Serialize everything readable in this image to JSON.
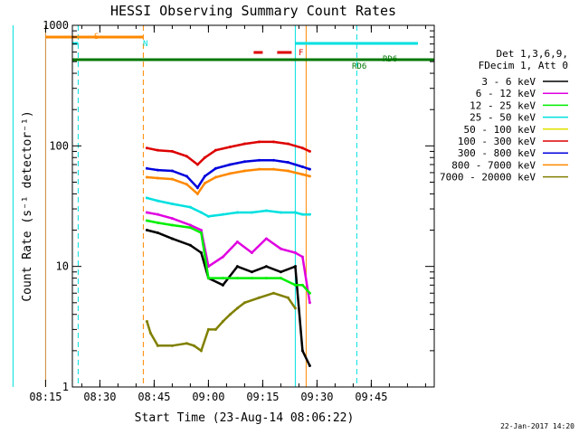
{
  "chart_data": {
    "type": "line",
    "title": "HESSI Observing Summary Count Rates",
    "xlabel": "Start Time (23-Aug-14 08:06:22)",
    "ylabel": "Count Rate (s⁻¹ detector⁻¹)",
    "yscale": "log",
    "ylim": [
      1,
      1000
    ],
    "xlim_minutes": [
      0,
      1200
    ],
    "x_ticks": [
      "08:15",
      "08:30",
      "08:45",
      "09:00",
      "09:15",
      "09:30",
      "09:45"
    ],
    "y_ticks": [
      "1",
      "10",
      "100",
      "1000"
    ],
    "legend_header": [
      "Det 1,3,6,9,",
      "FDecim 1, Att 0"
    ],
    "legend_placement": "right",
    "series": [
      {
        "name": "3 - 6 keV",
        "color": "#000000",
        "x": [
          "08:43",
          "08:46",
          "08:50",
          "08:55",
          "08:58",
          "09:00",
          "09:04",
          "09:08",
          "09:12",
          "09:16",
          "09:20",
          "09:24",
          "09:26",
          "09:28"
        ],
        "y": [
          20,
          19,
          17,
          15,
          13,
          8,
          7,
          10,
          9,
          10,
          9,
          10,
          2,
          1.5
        ]
      },
      {
        "name": "6 - 12 keV",
        "color": "#e000e0",
        "x": [
          "08:43",
          "08:46",
          "08:50",
          "08:55",
          "08:58",
          "09:00",
          "09:04",
          "09:08",
          "09:12",
          "09:16",
          "09:20",
          "09:24",
          "09:26",
          "09:28"
        ],
        "y": [
          28,
          27,
          25,
          22,
          20,
          10,
          12,
          16,
          13,
          17,
          14,
          13,
          12,
          5
        ]
      },
      {
        "name": "12 - 25 keV",
        "color": "#00ee00",
        "x": [
          "08:43",
          "08:46",
          "08:50",
          "08:55",
          "08:58",
          "09:00",
          "09:04",
          "09:08",
          "09:12",
          "09:16",
          "09:20",
          "09:24",
          "09:26",
          "09:28"
        ],
        "y": [
          24,
          23,
          22,
          21,
          19,
          8,
          8,
          8,
          8,
          8,
          8,
          7,
          7,
          6
        ]
      },
      {
        "name": "25 - 50 keV",
        "color": "#00e0e0",
        "x": [
          "08:43",
          "08:46",
          "08:50",
          "08:55",
          "08:58",
          "09:00",
          "09:04",
          "09:08",
          "09:12",
          "09:16",
          "09:20",
          "09:24",
          "09:26",
          "09:28"
        ],
        "y": [
          37,
          35,
          33,
          31,
          28,
          26,
          27,
          28,
          28,
          29,
          28,
          28,
          27,
          27
        ]
      },
      {
        "name": "50 - 100 keV",
        "color": "#e0e000",
        "x": [],
        "y": []
      },
      {
        "name": "100 - 300 keV",
        "color": "#dd0000",
        "x": [
          "08:43",
          "08:46",
          "08:50",
          "08:54",
          "08:57",
          "08:59",
          "09:02",
          "09:06",
          "09:10",
          "09:14",
          "09:18",
          "09:22",
          "09:26",
          "09:28"
        ],
        "y": [
          96,
          92,
          90,
          82,
          70,
          80,
          92,
          98,
          104,
          108,
          108,
          104,
          96,
          90
        ]
      },
      {
        "name": "300 - 800 keV",
        "color": "#0000dd",
        "x": [
          "08:43",
          "08:46",
          "08:50",
          "08:54",
          "08:57",
          "08:59",
          "09:02",
          "09:06",
          "09:10",
          "09:14",
          "09:18",
          "09:22",
          "09:26",
          "09:28"
        ],
        "y": [
          65,
          63,
          62,
          56,
          45,
          56,
          65,
          70,
          74,
          76,
          76,
          73,
          67,
          64
        ]
      },
      {
        "name": "800 - 7000 keV",
        "color": "#ff8800",
        "x": [
          "08:43",
          "08:46",
          "08:50",
          "08:54",
          "08:57",
          "08:59",
          "09:02",
          "09:06",
          "09:10",
          "09:14",
          "09:18",
          "09:22",
          "09:26",
          "09:28"
        ],
        "y": [
          55,
          54,
          53,
          48,
          40,
          49,
          55,
          59,
          62,
          64,
          64,
          62,
          58,
          56
        ]
      },
      {
        "name": "7000 - 20000 keV",
        "color": "#808000",
        "x": [
          "08:43",
          "08:44",
          "08:46",
          "08:50",
          "08:54",
          "08:56",
          "08:58",
          "09:00",
          "09:02",
          "09:04",
          "09:06",
          "09:08",
          "09:10",
          "09:14",
          "09:18",
          "09:22",
          "09:24"
        ],
        "y": [
          3.5,
          2.8,
          2.2,
          2.2,
          2.3,
          2.2,
          2.0,
          3.0,
          3.0,
          3.5,
          4.0,
          4.5,
          5.0,
          5.5,
          6.0,
          5.5,
          4.5
        ]
      }
    ],
    "annotations": [
      {
        "label": "S",
        "color": "#ff8800"
      },
      {
        "label": "N",
        "color": "#00e0e0"
      },
      {
        "label": "F",
        "color": "#dd0000"
      },
      {
        "label": "RD6",
        "color": "#007700"
      },
      {
        "label": "RD6",
        "color": "#007700"
      }
    ]
  },
  "footer": {
    "date": "22-Jan-2017 14:20"
  }
}
